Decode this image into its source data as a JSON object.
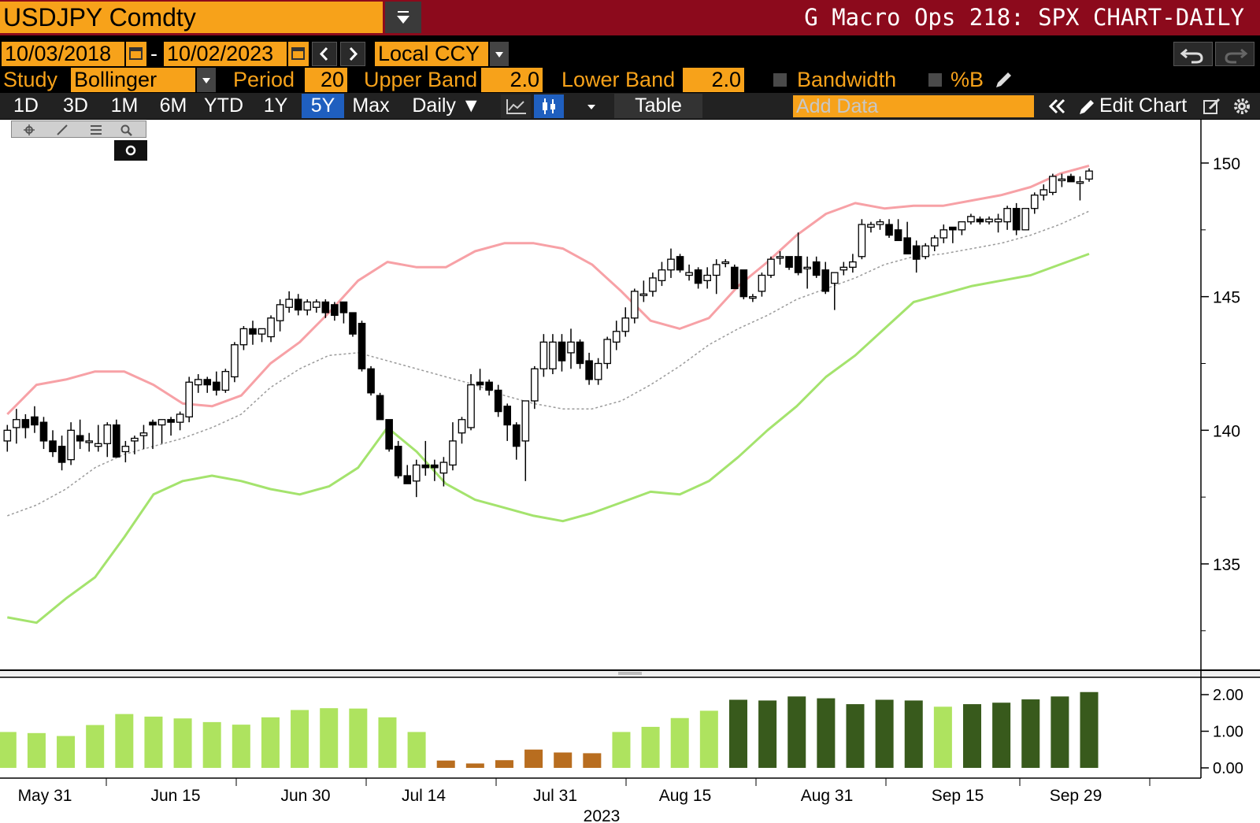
{
  "header": {
    "ticker": "USDJPY Comdty",
    "title": "G Macro Ops 218: SPX CHART-DAILY"
  },
  "range": {
    "start": "10/03/2018",
    "separator": "-",
    "end": "10/02/2023",
    "currency": "Local CCY"
  },
  "study": {
    "label": "Study",
    "value": "Bollinger",
    "period_label": "Period",
    "period": "20",
    "upper_label": "Upper Band",
    "upper": "2.0",
    "lower_label": "Lower Band",
    "lower": "2.0",
    "bandwidth_label": "Bandwidth",
    "pctb_label": "%B"
  },
  "toolbar": {
    "periods": [
      "1D",
      "3D",
      "1M",
      "6M",
      "YTD",
      "1Y",
      "5Y",
      "Max"
    ],
    "active_period": "5Y",
    "frequency": "Daily ▼",
    "table": "Table",
    "add_data_placeholder": "Add Data",
    "edit_chart": "Edit Chart"
  },
  "colors": {
    "upper_band": "#f7a1a6",
    "lower_band": "#a4e36d",
    "middle_band": "#9a9a9a",
    "accent": "#f7a21a",
    "header_red": "#8c0a1c",
    "active_tab": "#1f5fbf"
  },
  "chart_data": [
    {
      "type": "candlestick",
      "ylim": [
        131.5,
        151.5
      ],
      "yticks": [
        135,
        140,
        145,
        150
      ],
      "xlabel": "2023",
      "x_tick_labels": [
        "May 31",
        "Jun 15",
        "Jun 30",
        "Jul 14",
        "Jul 31",
        "Aug 15",
        "Aug 31",
        "Sep 15",
        "Sep 29"
      ],
      "series": [
        {
          "name": "upper",
          "values": [
            140.6,
            141.7,
            141.9,
            142.2,
            142.2,
            141.7,
            141.0,
            140.9,
            141.3,
            142.5,
            143.3,
            144.4,
            145.6,
            146.3,
            146.1,
            146.1,
            146.7,
            147.0,
            147.0,
            146.8,
            146.2,
            145.2,
            144.1,
            143.8,
            144.2,
            145.4,
            146.3,
            147.3,
            148.1,
            148.5,
            148.3,
            148.4,
            148.4,
            148.6,
            148.8,
            149.1,
            149.6,
            149.9
          ]
        },
        {
          "name": "middle",
          "values": [
            136.8,
            137.2,
            137.8,
            138.6,
            139.1,
            139.4,
            139.7,
            140.1,
            140.6,
            141.6,
            142.3,
            142.8,
            142.9,
            142.6,
            142.3,
            142.0,
            141.7,
            141.3,
            141.0,
            140.8,
            140.8,
            141.1,
            141.7,
            142.4,
            143.2,
            143.8,
            144.3,
            144.9,
            145.3,
            145.7,
            146.2,
            146.5,
            146.6,
            146.8,
            147.0,
            147.3,
            147.7,
            148.2
          ]
        },
        {
          "name": "lower",
          "values": [
            133.0,
            132.8,
            133.7,
            134.5,
            136.0,
            137.6,
            138.1,
            138.3,
            138.1,
            137.8,
            137.6,
            137.9,
            138.6,
            140.1,
            139.2,
            138.0,
            137.4,
            137.1,
            136.8,
            136.6,
            136.9,
            137.3,
            137.7,
            137.6,
            138.1,
            139.0,
            140.0,
            140.9,
            142.0,
            142.8,
            143.8,
            144.8,
            145.1,
            145.4,
            145.6,
            145.8,
            146.2,
            146.6
          ]
        },
        {
          "name": "bandwidth",
          "values": [
            0.98,
            0.95,
            0.87,
            1.17,
            1.47,
            1.4,
            1.35,
            1.25,
            1.18,
            1.38,
            1.58,
            1.63,
            1.62,
            1.38,
            0.98,
            0.2,
            0.12,
            0.21,
            0.5,
            0.42,
            0.4,
            0.98,
            1.12,
            1.36,
            1.56,
            1.86,
            1.84,
            1.95,
            1.9,
            1.74,
            1.86,
            1.84,
            1.67,
            1.74,
            1.78,
            1.87,
            1.95,
            2.07
          ]
        }
      ],
      "candles": [
        {
          "o": 139.6,
          "h": 140.2,
          "l": 139.2,
          "c": 140.0
        },
        {
          "o": 140.1,
          "h": 140.8,
          "l": 139.5,
          "c": 140.4
        },
        {
          "o": 140.4,
          "h": 140.6,
          "l": 139.7,
          "c": 140.1
        },
        {
          "o": 140.5,
          "h": 140.9,
          "l": 139.9,
          "c": 140.2
        },
        {
          "o": 140.3,
          "h": 140.5,
          "l": 139.3,
          "c": 139.6
        },
        {
          "o": 139.6,
          "h": 140.0,
          "l": 139.0,
          "c": 139.2
        },
        {
          "o": 139.4,
          "h": 139.8,
          "l": 138.5,
          "c": 138.8
        },
        {
          "o": 138.9,
          "h": 140.3,
          "l": 138.7,
          "c": 140.0
        },
        {
          "o": 139.8,
          "h": 140.4,
          "l": 139.3,
          "c": 139.6
        },
        {
          "o": 139.6,
          "h": 139.9,
          "l": 139.2,
          "c": 139.6
        },
        {
          "o": 139.4,
          "h": 140.2,
          "l": 139.2,
          "c": 139.5
        },
        {
          "o": 139.5,
          "h": 140.3,
          "l": 139.0,
          "c": 140.2
        },
        {
          "o": 140.2,
          "h": 140.4,
          "l": 139.0,
          "c": 139.0
        },
        {
          "o": 139.2,
          "h": 139.6,
          "l": 138.8,
          "c": 139.4
        },
        {
          "o": 139.6,
          "h": 139.8,
          "l": 139.1,
          "c": 139.7
        },
        {
          "o": 139.8,
          "h": 140.2,
          "l": 139.3,
          "c": 139.9
        },
        {
          "o": 140.3,
          "h": 140.4,
          "l": 139.3,
          "c": 140.2
        },
        {
          "o": 140.2,
          "h": 140.3,
          "l": 139.5,
          "c": 140.4
        },
        {
          "o": 140.4,
          "h": 140.5,
          "l": 139.8,
          "c": 140.3
        },
        {
          "o": 140.3,
          "h": 140.7,
          "l": 140.0,
          "c": 140.6
        },
        {
          "o": 140.5,
          "h": 142.0,
          "l": 140.3,
          "c": 141.8
        },
        {
          "o": 141.7,
          "h": 142.1,
          "l": 141.4,
          "c": 141.9
        },
        {
          "o": 141.9,
          "h": 142.0,
          "l": 141.4,
          "c": 141.7
        },
        {
          "o": 141.8,
          "h": 142.2,
          "l": 141.3,
          "c": 141.5
        },
        {
          "o": 141.5,
          "h": 142.3,
          "l": 141.4,
          "c": 142.2
        },
        {
          "o": 142.0,
          "h": 143.3,
          "l": 141.8,
          "c": 143.2
        },
        {
          "o": 143.2,
          "h": 143.9,
          "l": 143.0,
          "c": 143.8
        },
        {
          "o": 143.8,
          "h": 144.1,
          "l": 143.2,
          "c": 143.6
        },
        {
          "o": 143.6,
          "h": 143.8,
          "l": 143.3,
          "c": 143.8
        },
        {
          "o": 143.5,
          "h": 144.3,
          "l": 143.3,
          "c": 144.2
        },
        {
          "o": 144.1,
          "h": 144.9,
          "l": 143.7,
          "c": 144.7
        },
        {
          "o": 144.6,
          "h": 145.2,
          "l": 144.4,
          "c": 144.9
        },
        {
          "o": 144.9,
          "h": 145.1,
          "l": 144.3,
          "c": 144.5
        },
        {
          "o": 144.5,
          "h": 144.9,
          "l": 144.3,
          "c": 144.8
        },
        {
          "o": 144.6,
          "h": 144.9,
          "l": 144.4,
          "c": 144.8
        },
        {
          "o": 144.8,
          "h": 144.9,
          "l": 144.2,
          "c": 144.4
        },
        {
          "o": 144.7,
          "h": 144.8,
          "l": 144.1,
          "c": 144.3
        },
        {
          "o": 144.8,
          "h": 144.8,
          "l": 144.0,
          "c": 144.4
        },
        {
          "o": 144.4,
          "h": 144.4,
          "l": 143.5,
          "c": 143.6
        },
        {
          "o": 144.0,
          "h": 144.1,
          "l": 142.2,
          "c": 142.3
        },
        {
          "o": 142.3,
          "h": 142.4,
          "l": 141.3,
          "c": 141.4
        },
        {
          "o": 141.3,
          "h": 141.4,
          "l": 140.4,
          "c": 140.4
        },
        {
          "o": 140.4,
          "h": 140.4,
          "l": 139.2,
          "c": 139.3
        },
        {
          "o": 139.4,
          "h": 139.6,
          "l": 138.2,
          "c": 138.3
        },
        {
          "o": 138.3,
          "h": 138.7,
          "l": 138.0,
          "c": 138.0
        },
        {
          "o": 138.1,
          "h": 138.9,
          "l": 137.5,
          "c": 138.7
        },
        {
          "o": 138.7,
          "h": 139.6,
          "l": 138.3,
          "c": 138.6
        },
        {
          "o": 138.7,
          "h": 138.9,
          "l": 138.1,
          "c": 138.6
        },
        {
          "o": 138.4,
          "h": 139.0,
          "l": 137.9,
          "c": 138.8
        },
        {
          "o": 138.7,
          "h": 140.3,
          "l": 138.5,
          "c": 139.6
        },
        {
          "o": 139.9,
          "h": 140.5,
          "l": 139.5,
          "c": 140.4
        },
        {
          "o": 140.1,
          "h": 142.1,
          "l": 140.0,
          "c": 141.7
        },
        {
          "o": 141.8,
          "h": 142.3,
          "l": 141.5,
          "c": 141.7
        },
        {
          "o": 141.8,
          "h": 141.9,
          "l": 141.3,
          "c": 141.5
        },
        {
          "o": 141.5,
          "h": 141.7,
          "l": 140.5,
          "c": 140.7
        },
        {
          "o": 140.9,
          "h": 141.0,
          "l": 139.6,
          "c": 140.2
        },
        {
          "o": 140.2,
          "h": 140.3,
          "l": 138.9,
          "c": 139.4
        },
        {
          "o": 139.6,
          "h": 141.1,
          "l": 138.1,
          "c": 141.1
        },
        {
          "o": 141.1,
          "h": 142.4,
          "l": 140.8,
          "c": 142.3
        },
        {
          "o": 142.3,
          "h": 143.6,
          "l": 142.0,
          "c": 143.3
        },
        {
          "o": 142.3,
          "h": 143.6,
          "l": 142.1,
          "c": 143.3
        },
        {
          "o": 143.3,
          "h": 143.6,
          "l": 142.2,
          "c": 142.6
        },
        {
          "o": 142.9,
          "h": 143.8,
          "l": 142.3,
          "c": 143.3
        },
        {
          "o": 143.3,
          "h": 143.4,
          "l": 142.3,
          "c": 142.5
        },
        {
          "o": 142.6,
          "h": 142.9,
          "l": 141.7,
          "c": 141.9
        },
        {
          "o": 141.9,
          "h": 142.7,
          "l": 141.7,
          "c": 142.5
        },
        {
          "o": 142.5,
          "h": 143.5,
          "l": 142.3,
          "c": 143.4
        },
        {
          "o": 143.3,
          "h": 144.1,
          "l": 143.0,
          "c": 143.7
        },
        {
          "o": 143.7,
          "h": 144.6,
          "l": 143.5,
          "c": 144.2
        },
        {
          "o": 144.2,
          "h": 145.3,
          "l": 144.0,
          "c": 145.2
        },
        {
          "o": 145.1,
          "h": 145.6,
          "l": 144.8,
          "c": 145.1
        },
        {
          "o": 145.2,
          "h": 145.9,
          "l": 145.0,
          "c": 145.7
        },
        {
          "o": 145.6,
          "h": 146.3,
          "l": 145.4,
          "c": 146.0
        },
        {
          "o": 146.0,
          "h": 146.8,
          "l": 145.7,
          "c": 146.4
        },
        {
          "o": 146.5,
          "h": 146.6,
          "l": 145.9,
          "c": 146.0
        },
        {
          "o": 145.8,
          "h": 146.2,
          "l": 145.6,
          "c": 145.9
        },
        {
          "o": 146.0,
          "h": 146.1,
          "l": 145.3,
          "c": 145.5
        },
        {
          "o": 145.6,
          "h": 146.1,
          "l": 145.3,
          "c": 145.8
        },
        {
          "o": 145.8,
          "h": 146.4,
          "l": 145.1,
          "c": 146.2
        },
        {
          "o": 146.3,
          "h": 146.4,
          "l": 146.1,
          "c": 146.3
        },
        {
          "o": 146.1,
          "h": 146.2,
          "l": 145.3,
          "c": 145.3
        },
        {
          "o": 146.0,
          "h": 146.0,
          "l": 144.9,
          "c": 145.0
        },
        {
          "o": 145.0,
          "h": 145.1,
          "l": 144.8,
          "c": 145.0
        },
        {
          "o": 145.2,
          "h": 145.9,
          "l": 145.0,
          "c": 145.8
        },
        {
          "o": 145.8,
          "h": 146.5,
          "l": 145.7,
          "c": 146.4
        },
        {
          "o": 146.5,
          "h": 146.7,
          "l": 146.2,
          "c": 146.5
        },
        {
          "o": 146.5,
          "h": 146.5,
          "l": 146.0,
          "c": 146.1
        },
        {
          "o": 146.5,
          "h": 147.4,
          "l": 145.8,
          "c": 145.9
        },
        {
          "o": 146.1,
          "h": 146.5,
          "l": 145.3,
          "c": 146.1
        },
        {
          "o": 146.3,
          "h": 146.5,
          "l": 145.7,
          "c": 145.8
        },
        {
          "o": 146.0,
          "h": 146.3,
          "l": 145.1,
          "c": 145.2
        },
        {
          "o": 145.5,
          "h": 145.9,
          "l": 144.5,
          "c": 145.9
        },
        {
          "o": 146.0,
          "h": 146.3,
          "l": 145.8,
          "c": 146.1
        },
        {
          "o": 146.1,
          "h": 146.6,
          "l": 145.9,
          "c": 146.3
        },
        {
          "o": 146.5,
          "h": 147.9,
          "l": 146.4,
          "c": 147.7
        },
        {
          "o": 147.6,
          "h": 147.8,
          "l": 147.4,
          "c": 147.7
        },
        {
          "o": 147.7,
          "h": 147.9,
          "l": 147.5,
          "c": 147.8
        },
        {
          "o": 147.7,
          "h": 147.9,
          "l": 147.2,
          "c": 147.3
        },
        {
          "o": 147.5,
          "h": 147.9,
          "l": 147.1,
          "c": 147.1
        },
        {
          "o": 147.2,
          "h": 147.8,
          "l": 146.6,
          "c": 146.6
        },
        {
          "o": 146.9,
          "h": 147.1,
          "l": 145.9,
          "c": 146.4
        },
        {
          "o": 146.5,
          "h": 147.0,
          "l": 146.4,
          "c": 146.9
        },
        {
          "o": 146.9,
          "h": 147.3,
          "l": 146.7,
          "c": 147.2
        },
        {
          "o": 147.2,
          "h": 147.7,
          "l": 147.0,
          "c": 147.5
        },
        {
          "o": 147.6,
          "h": 147.6,
          "l": 147.0,
          "c": 147.5
        },
        {
          "o": 147.5,
          "h": 147.8,
          "l": 147.3,
          "c": 147.8
        },
        {
          "o": 147.8,
          "h": 148.1,
          "l": 147.7,
          "c": 148.0
        },
        {
          "o": 147.9,
          "h": 148.0,
          "l": 147.7,
          "c": 147.8
        },
        {
          "o": 147.8,
          "h": 148.0,
          "l": 147.7,
          "c": 147.9
        },
        {
          "o": 147.8,
          "h": 148.1,
          "l": 147.4,
          "c": 147.9
        },
        {
          "o": 147.8,
          "h": 148.4,
          "l": 147.5,
          "c": 148.3
        },
        {
          "o": 148.3,
          "h": 148.5,
          "l": 147.3,
          "c": 147.5
        },
        {
          "o": 147.5,
          "h": 148.3,
          "l": 147.5,
          "c": 148.3
        },
        {
          "o": 148.3,
          "h": 148.9,
          "l": 148.1,
          "c": 148.8
        },
        {
          "o": 148.8,
          "h": 149.2,
          "l": 148.6,
          "c": 149.0
        },
        {
          "o": 148.9,
          "h": 149.6,
          "l": 148.8,
          "c": 149.5
        },
        {
          "o": 149.4,
          "h": 149.6,
          "l": 149.1,
          "c": 149.4
        },
        {
          "o": 149.5,
          "h": 149.6,
          "l": 149.3,
          "c": 149.3
        },
        {
          "o": 149.3,
          "h": 149.5,
          "l": 148.6,
          "c": 149.3
        },
        {
          "o": 149.4,
          "h": 149.8,
          "l": 149.3,
          "c": 149.7
        }
      ]
    },
    {
      "type": "bar",
      "name": "bandwidth_panel",
      "ylim": [
        0,
        2.3
      ],
      "yticks": [
        "0.00",
        "1.00",
        "2.00"
      ]
    }
  ]
}
